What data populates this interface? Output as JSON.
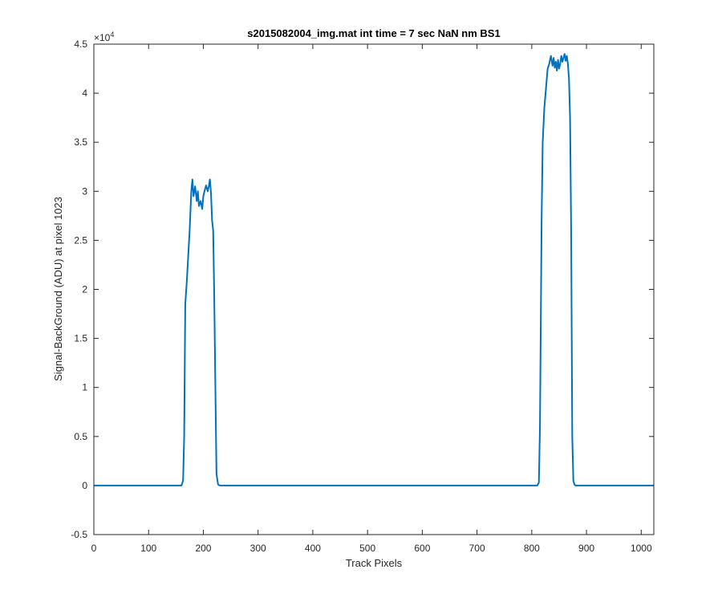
{
  "chart_data": {
    "type": "line",
    "title": "s2015082004_img.mat int time = 7 sec  NaN nm BS1",
    "xlabel": "Track Pixels",
    "ylabel": "Signal-BackGround (ADU) at pixel 1023",
    "xlim": [
      0,
      1023
    ],
    "ylim": [
      -5000,
      45000
    ],
    "x_ticks": [
      "0",
      "100",
      "200",
      "300",
      "400",
      "500",
      "600",
      "700",
      "800",
      "900",
      "1000"
    ],
    "y_ticks": [
      "-0.5",
      "0",
      "0.5",
      "1",
      "1.5",
      "2",
      "2.5",
      "3",
      "3.5",
      "4",
      "4.5"
    ],
    "y_exponent_base": "×10",
    "y_exponent_power": "4",
    "grid": false,
    "line_color": "#0072BD",
    "series": [
      {
        "x": [
          0,
          100,
          160,
          163,
          165,
          167,
          170,
          175,
          178,
          180,
          182,
          185,
          188,
          190,
          192,
          195,
          198,
          200,
          203,
          205,
          208,
          210,
          212,
          214,
          216,
          218,
          220,
          222,
          224,
          227,
          230,
          300,
          400,
          500,
          600,
          700,
          810,
          813,
          815,
          818,
          820,
          823,
          826,
          829,
          832,
          835,
          838,
          840,
          842,
          844,
          846,
          848,
          850,
          852,
          854,
          856,
          858,
          860,
          862,
          864,
          866,
          868,
          870,
          872,
          874,
          876,
          878,
          880,
          900,
          1000,
          1023
        ],
        "y": [
          0,
          0,
          0,
          500,
          5000,
          18500,
          21000,
          26000,
          30000,
          31200,
          29500,
          30500,
          29000,
          30000,
          28500,
          29000,
          28200,
          29500,
          30200,
          30600,
          30000,
          30500,
          31200,
          29800,
          27000,
          26000,
          19000,
          10000,
          1200,
          100,
          0,
          0,
          0,
          0,
          0,
          0,
          0,
          300,
          6000,
          27000,
          35000,
          38500,
          40500,
          42500,
          43000,
          43800,
          42800,
          43600,
          42600,
          43200,
          42300,
          43400,
          42500,
          43000,
          43800,
          43200,
          43600,
          44000,
          43300,
          43800,
          43000,
          41500,
          37500,
          26000,
          5000,
          500,
          100,
          0,
          0,
          0,
          0
        ]
      }
    ]
  }
}
